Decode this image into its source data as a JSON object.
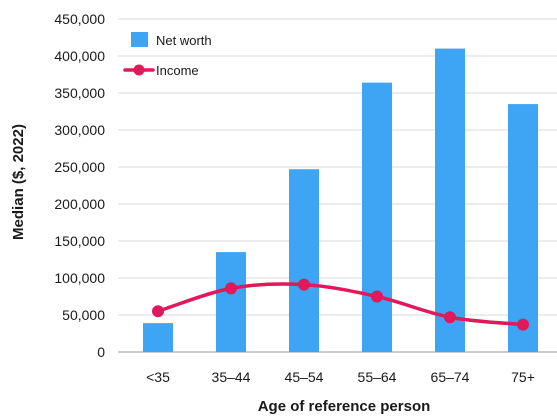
{
  "chart_data": {
    "type": "bar",
    "categories": [
      "<35",
      "35–44",
      "45–54",
      "55–64",
      "65–74",
      "75+"
    ],
    "series": [
      {
        "name": "Net worth",
        "kind": "bar",
        "color": "#3da5f4",
        "values": [
          39000,
          135000,
          247000,
          364000,
          410000,
          335000
        ]
      },
      {
        "name": "Income",
        "kind": "line",
        "color": "#e0195a",
        "values": [
          55000,
          86000,
          91000,
          75000,
          47000,
          37000
        ]
      }
    ],
    "xlabel": "Age of reference person",
    "ylabel": "Median ($, 2022)",
    "ylim": [
      0,
      450000
    ],
    "yticks": [
      "0",
      "50,000",
      "100,000",
      "150,000",
      "200,000",
      "250,000",
      "300,000",
      "350,000",
      "400,000",
      "450,000"
    ],
    "grid": true,
    "legend_position": "top-left"
  }
}
